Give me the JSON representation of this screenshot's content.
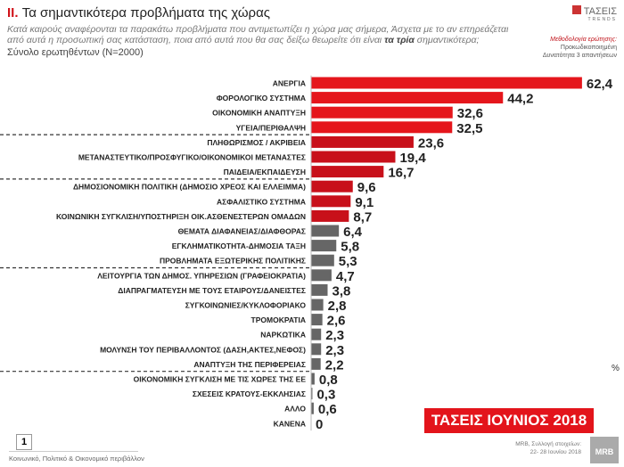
{
  "header": {
    "title_num": "II.",
    "title": "Τα σημαντικότερα προβλήματα της χώρας",
    "question_line1": "Κατά καιρούς αναφέρονται τα παρακάτω προβλήματα που αντιμετωπίζει η χώρα μας σήμερα, Άσχετα με το αν επηρεάζεται",
    "question_line2_a": "από αυτά η προσωπική σας κατάσταση, ποια από αυτά που θα σας δείξω θεωρείτε ότι είναι ",
    "question_line2_b": "τα τρία",
    "question_line2_c": " σημαντικότερα;",
    "base": "Σύνολο ερωτηθέντων (Ν=2000)",
    "logo": "ΤΑΣΕΙΣ",
    "logo_sub": "TRENDS",
    "method_label": "Μεθοδολογία ερώτησης:",
    "method_line1": "Προκωδικοποιημένη",
    "method_line2": "Δυνατότητα 3 απαντήσεων"
  },
  "chart_data": {
    "type": "bar",
    "orientation": "horizontal",
    "unit": "%",
    "categories": [
      "ΑΝΕΡΓΙΑ",
      "ΦΟΡΟΛΟΓΙΚΟ ΣΥΣΤΗΜΑ",
      "ΟΙΚΟΝΟΜΙΚΗ ΑΝΑΠΤΥΞΗ",
      "ΥΓΕΙΑ/ΠΕΡΙΘΑΛΨΗ",
      "ΠΛΗΘΩΡΙΣΜΟΣ / ΑΚΡΙΒΕΙΑ",
      "ΜΕΤΑΝΑΣΤΕΥΤΙΚΟ/ΠΡΟΣΦΥΓΙΚΟ/ΟΙΚΟΝΟΜΙΚΟΙ ΜΕΤΑΝΑΣΤΕΣ",
      "ΠΑΙΔΕΙΑ/ΕΚΠΑΙΔΕΥΣΗ",
      "ΔΗΜΟΣΙΟΝΟΜΙΚΗ ΠΟΛΙΤΙΚΗ (ΔΗΜΟΣΙΟ ΧΡΕΟΣ ΚΑΙ ΕΛΛΕΙΜΜΑ)",
      "ΑΣΦΑΛΙΣΤΙΚΟ ΣΥΣΤΗΜΑ",
      "ΚΟΙΝΩΝΙΚΗ ΣΥΓΚΛΙΣΗ/ΥΠΟΣΤΗΡΙΞΗ ΟΙΚ.ΑΣΘΕΝΕΣΤΕΡΩΝ ΟΜΑΔΩΝ",
      "ΘΕΜΑΤΑ ΔΙΑΦΑΝΕΙΑΣ/ΔΙΑΦΘΟΡΑΣ",
      "ΕΓΚΛΗΜΑΤΙΚΟΤΗΤΑ-ΔΗΜΟΣΙΑ ΤΑΞΗ",
      "ΠΡΟΒΛΗΜΑΤΑ ΕΞΩΤΕΡΙΚΗΣ ΠΟΛΙΤΙΚΗΣ",
      "ΛΕΙΤΟΥΡΓΙΑ ΤΩΝ ΔΗΜΟΣ. ΥΠΗΡΕΣΙΩΝ (ΓΡΑΦΕΙΟΚΡΑΤΙΑ)",
      "ΔΙΑΠΡΑΓΜΑΤΕΥΣΗ ΜΕ ΤΟΥΣ ΕΤΑΙΡΟΥΣ/ΔΑΝΕΙΣΤΕΣ",
      "ΣΥΓΚΟΙΝΩΝΙΕΣ/ΚΥΚΛΟΦΟΡΙΑΚΟ",
      "ΤΡΟΜΟΚΡΑΤΙΑ",
      "ΝΑΡΚΩΤΙΚΑ",
      "ΜΟΛΥΝΣΗ ΤΟΥ ΠΕΡΙΒΑΛΛΟΝΤΟΣ (ΔΑΣΗ,ΑΚΤΕΣ,ΝΕΦΟΣ)",
      "ΑΝΑΠΤΥΞΗ ΤΗΣ ΠΕΡΙΦΕΡΕΙΑΣ",
      "ΟΙΚΟΝΟΜΙΚΗ ΣΥΓΚΛΙΣΗ ΜΕ ΤΙΣ ΧΩΡΕΣ ΤΗΣ ΕΕ",
      "ΣΧΕΣΕΙΣ ΚΡΑΤΟΥΣ-ΕΚΚΛΗΣΙΑΣ",
      "ΑΛΛΟ",
      "ΚΑΝΕΝΑ"
    ],
    "values": [
      62.4,
      44.2,
      32.6,
      32.5,
      23.6,
      19.4,
      16.7,
      9.6,
      9.1,
      8.7,
      6.4,
      5.8,
      5.3,
      4.7,
      3.8,
      2.8,
      2.6,
      2.3,
      2.3,
      2.2,
      0.8,
      0.3,
      0.6,
      0
    ],
    "labels": [
      "62,4",
      "44,2",
      "32,6",
      "32,5",
      "23,6",
      "19,4",
      "16,7",
      "9,6",
      "9,1",
      "8,7",
      "6,4",
      "5,8",
      "5,3",
      "4,7",
      "3,8",
      "2,8",
      "2,6",
      "2,3",
      "2,3",
      "2,2",
      "0,8",
      "0,3",
      "0,6",
      "0"
    ],
    "bar_colors": [
      "#e5161c",
      "#e5161c",
      "#e5161c",
      "#e5161c",
      "#c8101a",
      "#c8101a",
      "#c8101a",
      "#c8101a",
      "#c8101a",
      "#c8101a",
      "#666666",
      "#666666",
      "#666666",
      "#666666",
      "#666666",
      "#666666",
      "#666666",
      "#666666",
      "#666666",
      "#666666",
      "#666666",
      "#666666",
      "#666666",
      "#666666"
    ],
    "group_breaks_after": [
      4,
      7,
      13,
      20
    ],
    "percent_marker": "%"
  },
  "footer": {
    "badge": "ΤΑΣΕΙΣ ΙΟΥΝΙΟΣ 2018",
    "page": "1",
    "section": "Κοινωνικό, Πολιτικό & Οικονομικό περιβάλλον",
    "source_line1": "MRB, Συλλογή στοιχείων:",
    "source_line2": "22- 28 Ιουνίου 2018",
    "mrb_logo": "MRB"
  }
}
